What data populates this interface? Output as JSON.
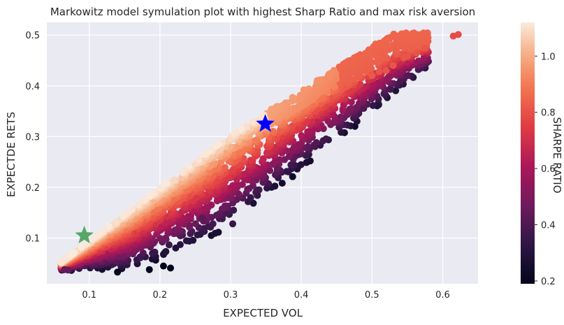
{
  "chart_data": {
    "type": "scatter",
    "title": "Markowitz model symulation plot with highest Sharp Ratio and max risk aversion",
    "xlabel": "EXPECTED VOL",
    "ylabel": "EXPECTDE RETS",
    "xlim": [
      0.04,
      0.65
    ],
    "ylim": [
      0.01,
      0.525
    ],
    "xticks": [
      0.1,
      0.2,
      0.3,
      0.4,
      0.5,
      0.6
    ],
    "xtick_labels": [
      "0.1",
      "0.2",
      "0.3",
      "0.4",
      "0.5",
      "0.6"
    ],
    "yticks": [
      0.1,
      0.2,
      0.3,
      0.4,
      0.5
    ],
    "ytick_labels": [
      "0.1",
      "0.2",
      "0.3",
      "0.4",
      "0.5"
    ],
    "grid": true,
    "background": "#eaeaf2",
    "colorbar": {
      "label": "SHARPE RATIO",
      "min": 0.19,
      "max": 1.12,
      "ticks": [
        0.2,
        0.4,
        0.6,
        0.8,
        1.0
      ],
      "tick_labels": [
        "0.2",
        "0.4",
        "0.6",
        "0.8",
        "1.0"
      ],
      "colormap": "rocket"
    },
    "markers": [
      {
        "marker": "star",
        "color": "#0000ff",
        "x": 0.349,
        "y": 0.325
      },
      {
        "marker": "star",
        "color": "#55a868",
        "x": 0.093,
        "y": 0.105
      }
    ],
    "outlier_points": [
      {
        "x": 0.615,
        "y": 0.498,
        "sharpe": 0.79
      },
      {
        "x": 0.622,
        "y": 0.501,
        "sharpe": 0.79
      },
      {
        "x": 0.575,
        "y": 0.474,
        "sharpe": 0.81
      },
      {
        "x": 0.563,
        "y": 0.465,
        "sharpe": 0.81
      },
      {
        "x": 0.55,
        "y": 0.458,
        "sharpe": 0.81
      },
      {
        "x": 0.545,
        "y": 0.455,
        "sharpe": 0.81
      },
      {
        "x": 0.53,
        "y": 0.44,
        "sharpe": 0.81
      },
      {
        "x": 0.52,
        "y": 0.43,
        "sharpe": 0.81
      },
      {
        "x": 0.51,
        "y": 0.428,
        "sharpe": 0.81
      },
      {
        "x": 0.5,
        "y": 0.42,
        "sharpe": 0.82
      },
      {
        "x": 0.303,
        "y": 0.128,
        "sharpe": 0.35
      },
      {
        "x": 0.28,
        "y": 0.145,
        "sharpe": 0.42
      },
      {
        "x": 0.275,
        "y": 0.128,
        "sharpe": 0.38
      },
      {
        "x": 0.26,
        "y": 0.14,
        "sharpe": 0.43
      },
      {
        "x": 0.07,
        "y": 0.037,
        "sharpe": 0.45
      },
      {
        "x": 0.065,
        "y": 0.038,
        "sharpe": 0.45
      },
      {
        "x": 0.215,
        "y": 0.041,
        "sharpe": 0.19
      },
      {
        "x": 0.205,
        "y": 0.045,
        "sharpe": 0.19
      },
      {
        "x": 0.185,
        "y": 0.038,
        "sharpe": 0.19
      },
      {
        "x": 0.14,
        "y": 0.033,
        "sharpe": 0.2
      }
    ]
  }
}
